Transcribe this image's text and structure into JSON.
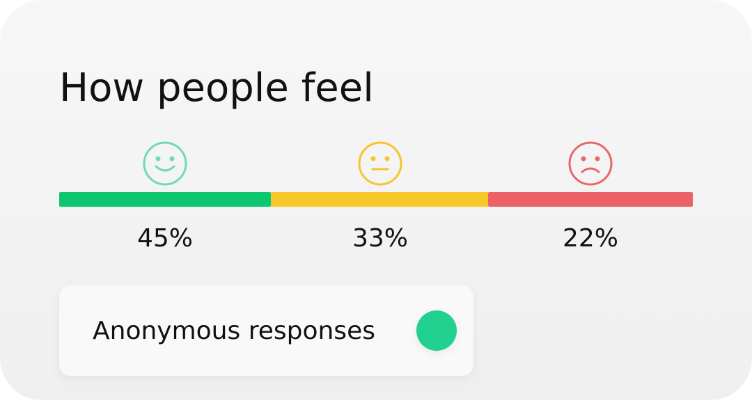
{
  "card": {
    "title": "How people feel",
    "segments": [
      {
        "label": "45%",
        "color": "#0cc770",
        "face_color": "#6fdbae"
      },
      {
        "label": "33%",
        "color": "#f7c92a",
        "face_color": "#f5c52e"
      },
      {
        "label": "22%",
        "color": "#ea6265",
        "face_color": "#e6686a"
      }
    ],
    "toggle": {
      "label": "Anonymous responses",
      "color": "#22d08f"
    }
  }
}
